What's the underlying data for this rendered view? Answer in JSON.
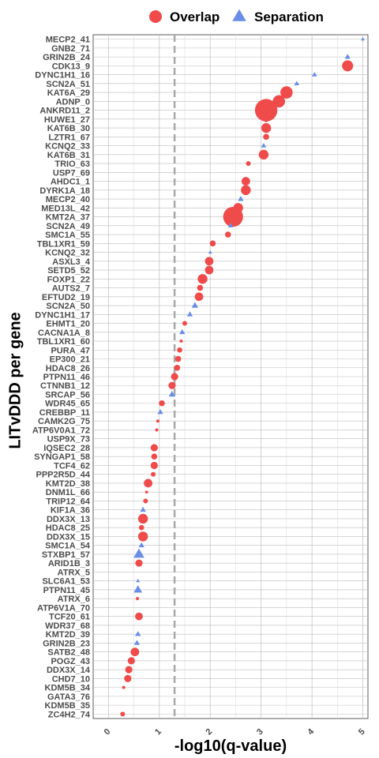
{
  "chart_data": {
    "type": "scatter",
    "xlabel": "-log10(q-value)",
    "ylabel": "LITvDDD per gene",
    "xlim": [
      -0.3,
      5.1
    ],
    "xticks": [
      "0",
      "1",
      "2",
      "3",
      "4",
      "5"
    ],
    "threshold_x": 1.3,
    "legend_position": "top",
    "grid": true,
    "series": [
      {
        "name": "Overlap",
        "shape": "circle",
        "color": "#ef4b4b"
      },
      {
        "name": "Separation",
        "shape": "triangle",
        "color": "#6a8ee8"
      }
    ],
    "points": [
      {
        "gene": "MECP2_41",
        "x": 5.0,
        "series": "Separation",
        "size": 0.5
      },
      {
        "gene": "GNB2_71",
        "x": null,
        "series": null,
        "size": 0
      },
      {
        "gene": "GRIN2B_24",
        "x": 4.7,
        "series": "Separation",
        "size": 1.2
      },
      {
        "gene": "CDK13_9",
        "x": 4.7,
        "series": "Overlap",
        "size": 3.5
      },
      {
        "gene": "DYNC1H1_16",
        "x": 4.05,
        "series": "Separation",
        "size": 1
      },
      {
        "gene": "SCN2A_51",
        "x": 3.7,
        "series": "Separation",
        "size": 1
      },
      {
        "gene": "KAT6A_29",
        "x": 3.5,
        "series": "Overlap",
        "size": 4
      },
      {
        "gene": "ADNP_0",
        "x": 3.35,
        "series": "Overlap",
        "size": 4
      },
      {
        "gene": "ANKRD11_2",
        "x": 3.1,
        "series": "Overlap",
        "size": 8
      },
      {
        "gene": "HUWE1_27",
        "x": 3.1,
        "series": "Overlap",
        "size": 1.5
      },
      {
        "gene": "KAT6B_30",
        "x": 3.1,
        "series": "Overlap",
        "size": 3
      },
      {
        "gene": "LZTR1_67",
        "x": 3.1,
        "series": "Overlap",
        "size": 1.5
      },
      {
        "gene": "KCNQ2_33",
        "x": 3.05,
        "series": "Separation",
        "size": 1
      },
      {
        "gene": "KAT6B_31",
        "x": 3.05,
        "series": "Overlap",
        "size": 3
      },
      {
        "gene": "TRIO_63",
        "x": 2.75,
        "series": "Overlap",
        "size": 1
      },
      {
        "gene": "USP7_69",
        "x": null,
        "series": null,
        "size": 0
      },
      {
        "gene": "AHDC1_1",
        "x": 2.7,
        "series": "Overlap",
        "size": 2.5
      },
      {
        "gene": "DYRK1A_18",
        "x": 2.7,
        "series": "Overlap",
        "size": 3
      },
      {
        "gene": "MECP2_40",
        "x": 2.6,
        "series": "Separation",
        "size": 1.2
      },
      {
        "gene": "MED13L_42",
        "x": 2.55,
        "series": "Overlap",
        "size": 3
      },
      {
        "gene": "KMT2A_37",
        "x": 2.45,
        "series": "Overlap",
        "size": 7
      },
      {
        "gene": "SCN2A_49",
        "x": 2.4,
        "series": "Separation",
        "size": 1
      },
      {
        "gene": "SMC1A_55",
        "x": 2.35,
        "series": "Overlap",
        "size": 1.5
      },
      {
        "gene": "TBL1XR1_59",
        "x": 2.05,
        "series": "Overlap",
        "size": 1.5
      },
      {
        "gene": "KCNQ2_32",
        "x": 2.0,
        "series": "Separation",
        "size": 0.5
      },
      {
        "gene": "ASXL3_4",
        "x": 1.98,
        "series": "Overlap",
        "size": 2.5
      },
      {
        "gene": "SETD5_52",
        "x": 1.98,
        "series": "Overlap",
        "size": 2.5
      },
      {
        "gene": "FOXP1_22",
        "x": 1.85,
        "series": "Overlap",
        "size": 3
      },
      {
        "gene": "AUTS2_7",
        "x": 1.8,
        "series": "Overlap",
        "size": 1.5
      },
      {
        "gene": "EFTUD2_19",
        "x": 1.78,
        "series": "Overlap",
        "size": 2.5
      },
      {
        "gene": "SCN2A_50",
        "x": 1.7,
        "series": "Separation",
        "size": 1.5
      },
      {
        "gene": "DYNC1H1_17",
        "x": 1.6,
        "series": "Separation",
        "size": 1.2
      },
      {
        "gene": "EHMT1_20",
        "x": 1.5,
        "series": "Overlap",
        "size": 1
      },
      {
        "gene": "CACNA1A_8",
        "x": 1.45,
        "series": "Separation",
        "size": 1.2
      },
      {
        "gene": "TBL1XR1_60",
        "x": 1.43,
        "series": "Overlap",
        "size": 0.4
      },
      {
        "gene": "PURA_47",
        "x": 1.4,
        "series": "Overlap",
        "size": 1.2
      },
      {
        "gene": "EP300_21",
        "x": 1.37,
        "series": "Overlap",
        "size": 1.5
      },
      {
        "gene": "HDAC8_26",
        "x": 1.35,
        "series": "Overlap",
        "size": 1.5
      },
      {
        "gene": "PTPN11_46",
        "x": 1.3,
        "series": "Overlap",
        "size": 2
      },
      {
        "gene": "CTNNB1_12",
        "x": 1.25,
        "series": "Overlap",
        "size": 2
      },
      {
        "gene": "SRCAP_56",
        "x": 1.25,
        "series": "Separation",
        "size": 1.5
      },
      {
        "gene": "WDR45_65",
        "x": 1.05,
        "series": "Overlap",
        "size": 1.5
      },
      {
        "gene": "CREBBP_11",
        "x": 1.02,
        "series": "Separation",
        "size": 1.2
      },
      {
        "gene": "CAMK2G_75",
        "x": 0.97,
        "series": "Overlap",
        "size": 0.4
      },
      {
        "gene": "ATP6V0A1_72",
        "x": 0.95,
        "series": "Overlap",
        "size": 0.4
      },
      {
        "gene": "USP9X_73",
        "x": null,
        "series": null,
        "size": 0
      },
      {
        "gene": "IQSEC2_28",
        "x": 0.9,
        "series": "Overlap",
        "size": 2
      },
      {
        "gene": "SYNGAP1_58",
        "x": 0.9,
        "series": "Overlap",
        "size": 1.5
      },
      {
        "gene": "TCF4_62",
        "x": 0.9,
        "series": "Overlap",
        "size": 2
      },
      {
        "gene": "PPP2R5D_44",
        "x": 0.88,
        "series": "Overlap",
        "size": 1
      },
      {
        "gene": "KMT2D_38",
        "x": 0.78,
        "series": "Overlap",
        "size": 2.5
      },
      {
        "gene": "DNM1L_66",
        "x": 0.75,
        "series": "Overlap",
        "size": 0.3
      },
      {
        "gene": "TRIP12_64",
        "x": 0.73,
        "series": "Overlap",
        "size": 1
      },
      {
        "gene": "KIF1A_36",
        "x": 0.68,
        "series": "Separation",
        "size": 1.2
      },
      {
        "gene": "DDX3X_13",
        "x": 0.68,
        "series": "Overlap",
        "size": 3
      },
      {
        "gene": "HDAC8_25",
        "x": 0.65,
        "series": "Overlap",
        "size": 1.2
      },
      {
        "gene": "DDX3X_15",
        "x": 0.68,
        "series": "Overlap",
        "size": 3
      },
      {
        "gene": "SMC1A_54",
        "x": 0.65,
        "series": "Separation",
        "size": 1.2
      },
      {
        "gene": "STXBP1_57",
        "x": 0.6,
        "series": "Separation",
        "size": 3
      },
      {
        "gene": "ARID1B_3",
        "x": 0.6,
        "series": "Overlap",
        "size": 2
      },
      {
        "gene": "ATRX_5",
        "x": null,
        "series": null,
        "size": 0
      },
      {
        "gene": "SLC6A1_53",
        "x": 0.58,
        "series": "Separation",
        "size": 0.6
      },
      {
        "gene": "PTPN11_45",
        "x": 0.58,
        "series": "Separation",
        "size": 2.2
      },
      {
        "gene": "ATRX_6",
        "x": 0.57,
        "series": "Overlap",
        "size": 0.4
      },
      {
        "gene": "ATP6V1A_70",
        "x": null,
        "series": null,
        "size": 0
      },
      {
        "gene": "TCF20_61",
        "x": 0.6,
        "series": "Overlap",
        "size": 2.2
      },
      {
        "gene": "WDR37_68",
        "x": null,
        "series": null,
        "size": 0
      },
      {
        "gene": "KMT2D_39",
        "x": 0.58,
        "series": "Separation",
        "size": 1.2
      },
      {
        "gene": "GRIN2B_23",
        "x": 0.56,
        "series": "Separation",
        "size": 1.2
      },
      {
        "gene": "SATB2_48",
        "x": 0.52,
        "series": "Overlap",
        "size": 2.5
      },
      {
        "gene": "POGZ_43",
        "x": 0.45,
        "series": "Overlap",
        "size": 2
      },
      {
        "gene": "DDX3X_14",
        "x": 0.4,
        "series": "Overlap",
        "size": 2
      },
      {
        "gene": "CHD7_10",
        "x": 0.38,
        "series": "Overlap",
        "size": 2
      },
      {
        "gene": "KDM5B_34",
        "x": 0.3,
        "series": "Overlap",
        "size": 0.4
      },
      {
        "gene": "GATA3_76",
        "x": null,
        "series": null,
        "size": 0
      },
      {
        "gene": "KDM5B_35",
        "x": null,
        "series": null,
        "size": 0
      },
      {
        "gene": "ZC4H2_74",
        "x": 0.28,
        "series": "Overlap",
        "size": 1
      }
    ]
  }
}
